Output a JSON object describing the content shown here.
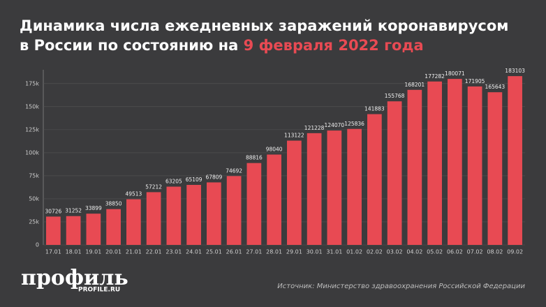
{
  "chart_data": {
    "type": "bar",
    "title_lines": [
      "Динамика числа ежедневных заражений коронавирусом",
      "в России по состоянию на"
    ],
    "title_highlight": "9 февраля 2022 года",
    "categories": [
      "17.01",
      "18.01",
      "19.01",
      "20.01",
      "21.01",
      "22.01",
      "23.01",
      "24.01",
      "25.01",
      "26.01",
      "27.01",
      "28.01",
      "29.01",
      "30.01",
      "31.01",
      "01.02",
      "02.02",
      "03.02",
      "04.02",
      "05.02",
      "06.02",
      "07.02",
      "08.02",
      "09.02"
    ],
    "values": [
      30726,
      31252,
      33899,
      38850,
      49513,
      57212,
      63205,
      65109,
      67809,
      74692,
      88816,
      98040,
      113122,
      121228,
      124070,
      125836,
      141883,
      155768,
      168201,
      177282,
      180071,
      171905,
      165643,
      183103
    ],
    "color": "#e84a53",
    "highlight_color": "#e84a53",
    "ylim": [
      0,
      190000
    ],
    "yticks": [
      0,
      {
        "value": 25000,
        "label": "25k"
      },
      {
        "value": 50000,
        "label": "50k"
      },
      {
        "value": 75000,
        "label": "75k"
      },
      {
        "value": 100000,
        "label": "100k"
      },
      {
        "value": 125000,
        "label": "125k"
      },
      {
        "value": 150000,
        "label": "150k"
      },
      {
        "value": 175000,
        "label": "175k"
      }
    ],
    "grid": true,
    "logo": "профиль",
    "logo_site": "PROFILE.RU",
    "source": "Источник: Министерство здравоохранения Российской Федерации"
  }
}
